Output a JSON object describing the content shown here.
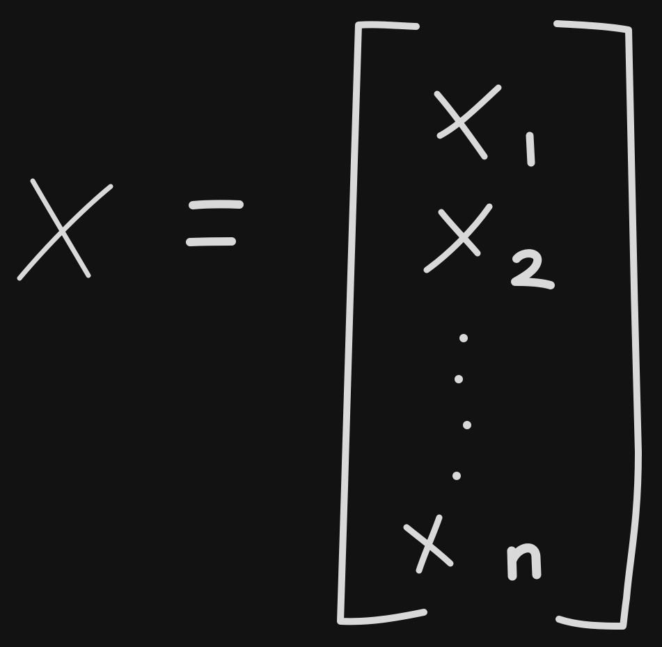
{
  "canvas": {
    "background_color": "#121212",
    "ink_color": "#d9d9d9"
  },
  "equation": {
    "lhs_symbol": "X",
    "operator": "=",
    "vector_entries": [
      {
        "base": "x",
        "subscript": "1"
      },
      {
        "base": "x",
        "subscript": "2"
      },
      {
        "base": "x",
        "subscript": "n"
      }
    ],
    "ellipsis": "vertical-dots",
    "brackets": "square"
  }
}
